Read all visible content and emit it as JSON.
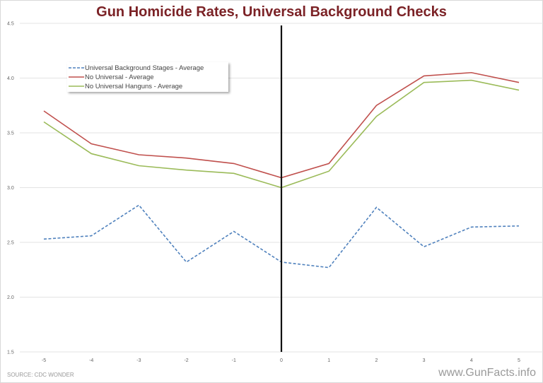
{
  "chart_data": {
    "type": "line",
    "title": "Gun Homicide Rates, Universal Background Checks",
    "xlabel": "",
    "ylabel": "",
    "x": [
      -5,
      -4,
      -3,
      -2,
      -1,
      0,
      1,
      2,
      3,
      4,
      5
    ],
    "ylim": [
      1.5,
      4.5
    ],
    "yticks": [
      "1.5",
      "2.0",
      "2.5",
      "3.0",
      "3.5",
      "4.0",
      "4.5"
    ],
    "xticks": [
      "-5",
      "-4",
      "-3",
      "-2",
      "-1",
      "0",
      "1",
      "2",
      "3",
      "4",
      "5"
    ],
    "grid": true,
    "legend_position": "top-left",
    "vertical_marker_x": 0,
    "series": [
      {
        "name": "Universal Background Stages - Average",
        "color": "#4f81bd",
        "dash": true,
        "values": [
          2.53,
          2.56,
          2.84,
          2.32,
          2.6,
          2.32,
          2.27,
          2.82,
          2.46,
          2.64,
          2.65
        ]
      },
      {
        "name": "No Universal - Average",
        "color": "#c0504d",
        "dash": false,
        "values": [
          3.7,
          3.4,
          3.3,
          3.27,
          3.22,
          3.09,
          3.22,
          3.75,
          4.02,
          4.05,
          3.96
        ]
      },
      {
        "name": "No Universal Hanguns - Average",
        "color": "#9bbb59",
        "dash": false,
        "values": [
          3.6,
          3.31,
          3.2,
          3.16,
          3.13,
          3.0,
          3.15,
          3.65,
          3.96,
          3.98,
          3.89
        ]
      }
    ]
  },
  "footer": {
    "source": "SOURCE: CDC WONDER",
    "brand": "www.GunFacts.info"
  }
}
